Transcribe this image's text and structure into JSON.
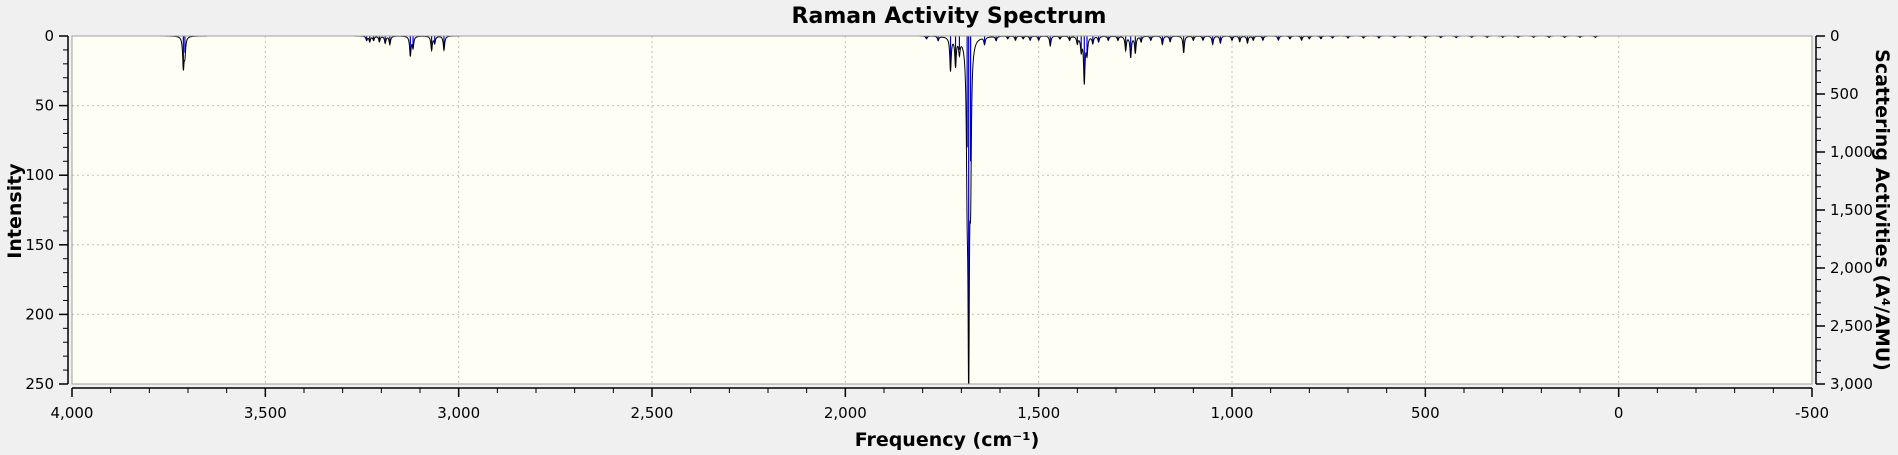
{
  "chart_data": {
    "type": "line",
    "title": "Raman Activity Spectrum",
    "xlabel": "Frequency (cm⁻¹)",
    "ylabel": "Intensity",
    "y2label": "Scattering Activities (A⁴/AMU)",
    "xlim": [
      4000,
      -500
    ],
    "ylim": [
      0,
      250
    ],
    "y2lim": [
      0,
      3000
    ],
    "x_axis_inverted": true,
    "y_axis_inverted": true,
    "grid": true,
    "legend": "none",
    "x_ticks": [
      4000,
      3500,
      3000,
      2500,
      2000,
      1500,
      1000,
      500,
      0,
      -500
    ],
    "x_tick_labels": [
      "4,000",
      "3,500",
      "3,000",
      "2,500",
      "2,000",
      "1,500",
      "1,000",
      "500",
      "0",
      "-500"
    ],
    "y_ticks": [
      0,
      50,
      100,
      150,
      200,
      250
    ],
    "y_tick_labels": [
      "0",
      "50",
      "100",
      "150",
      "200",
      "250"
    ],
    "y2_ticks": [
      0,
      500,
      1000,
      1500,
      2000,
      2500,
      3000
    ],
    "y2_tick_labels": [
      "0",
      "500",
      "1,000",
      "1,500",
      "2,000",
      "2,500",
      "3,000"
    ],
    "spectrum_range": [
      3760,
      -40
    ],
    "peaks": [
      {
        "x": 3712,
        "y": 22
      },
      {
        "x": 3708,
        "y": 12
      },
      {
        "x": 3238,
        "y": 3
      },
      {
        "x": 3230,
        "y": 4
      },
      {
        "x": 3220,
        "y": 3
      },
      {
        "x": 3205,
        "y": 4
      },
      {
        "x": 3190,
        "y": 5
      },
      {
        "x": 3178,
        "y": 6
      },
      {
        "x": 3125,
        "y": 14
      },
      {
        "x": 3118,
        "y": 8
      },
      {
        "x": 3070,
        "y": 10
      },
      {
        "x": 3062,
        "y": 5
      },
      {
        "x": 3038,
        "y": 10
      },
      {
        "x": 1790,
        "y": 2
      },
      {
        "x": 1760,
        "y": 3
      },
      {
        "x": 1728,
        "y": 24
      },
      {
        "x": 1715,
        "y": 20
      },
      {
        "x": 1705,
        "y": 10
      },
      {
        "x": 1685,
        "y": 80
      },
      {
        "x": 1681,
        "y": 228
      },
      {
        "x": 1676,
        "y": 90
      },
      {
        "x": 1640,
        "y": 5
      },
      {
        "x": 1610,
        "y": 3
      },
      {
        "x": 1580,
        "y": 2
      },
      {
        "x": 1560,
        "y": 3
      },
      {
        "x": 1540,
        "y": 2
      },
      {
        "x": 1522,
        "y": 3
      },
      {
        "x": 1500,
        "y": 3
      },
      {
        "x": 1470,
        "y": 7
      },
      {
        "x": 1445,
        "y": 2
      },
      {
        "x": 1420,
        "y": 3
      },
      {
        "x": 1400,
        "y": 5
      },
      {
        "x": 1390,
        "y": 10
      },
      {
        "x": 1382,
        "y": 33
      },
      {
        "x": 1375,
        "y": 12
      },
      {
        "x": 1360,
        "y": 5
      },
      {
        "x": 1345,
        "y": 4
      },
      {
        "x": 1320,
        "y": 3
      },
      {
        "x": 1295,
        "y": 3
      },
      {
        "x": 1275,
        "y": 10
      },
      {
        "x": 1262,
        "y": 15
      },
      {
        "x": 1250,
        "y": 12
      },
      {
        "x": 1235,
        "y": 4
      },
      {
        "x": 1210,
        "y": 3
      },
      {
        "x": 1180,
        "y": 6
      },
      {
        "x": 1160,
        "y": 4
      },
      {
        "x": 1125,
        "y": 12
      },
      {
        "x": 1100,
        "y": 3
      },
      {
        "x": 1075,
        "y": 3
      },
      {
        "x": 1050,
        "y": 6
      },
      {
        "x": 1030,
        "y": 5
      },
      {
        "x": 1000,
        "y": 3
      },
      {
        "x": 980,
        "y": 4
      },
      {
        "x": 960,
        "y": 5
      },
      {
        "x": 945,
        "y": 3
      },
      {
        "x": 920,
        "y": 3
      },
      {
        "x": 880,
        "y": 3
      },
      {
        "x": 850,
        "y": 2
      },
      {
        "x": 820,
        "y": 3
      },
      {
        "x": 800,
        "y": 2
      },
      {
        "x": 770,
        "y": 2
      },
      {
        "x": 740,
        "y": 1.5
      },
      {
        "x": 700,
        "y": 1.5
      },
      {
        "x": 660,
        "y": 1.5
      },
      {
        "x": 620,
        "y": 1.5
      },
      {
        "x": 580,
        "y": 1.2
      },
      {
        "x": 540,
        "y": 1.2
      },
      {
        "x": 500,
        "y": 1.5
      },
      {
        "x": 460,
        "y": 1.2
      },
      {
        "x": 420,
        "y": 1.2
      },
      {
        "x": 380,
        "y": 1
      },
      {
        "x": 340,
        "y": 1
      },
      {
        "x": 300,
        "y": 1
      },
      {
        "x": 260,
        "y": 1
      },
      {
        "x": 220,
        "y": 1
      },
      {
        "x": 180,
        "y": 1
      },
      {
        "x": 140,
        "y": 1
      },
      {
        "x": 100,
        "y": 1
      },
      {
        "x": 60,
        "y": 1
      }
    ],
    "colors": {
      "plot_background": "#fefef4",
      "page_background": "#f0f0f0",
      "curve": "#000000",
      "sticks": "#0000cc",
      "grid": "#c0c0c0"
    }
  }
}
